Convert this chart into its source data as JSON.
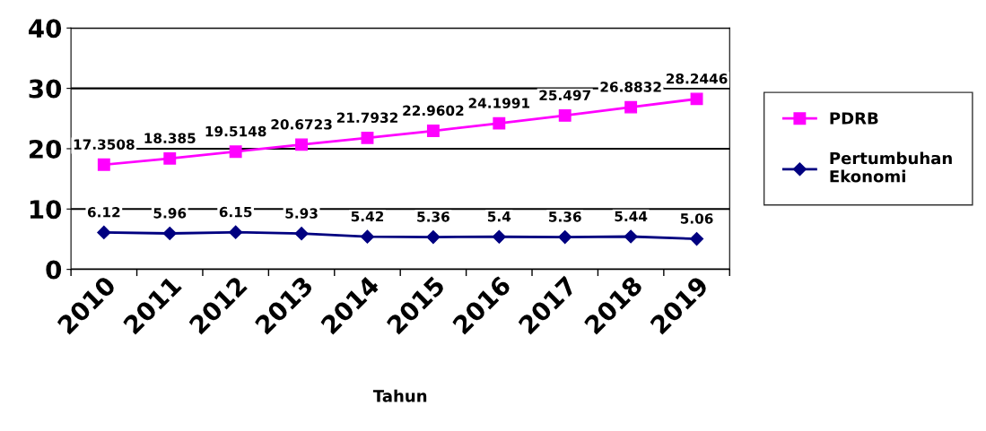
{
  "chart_data": {
    "type": "line",
    "xlabel": "Tahun",
    "categories": [
      "2010",
      "2011",
      "2012",
      "2013",
      "2014",
      "2015",
      "2016",
      "2017",
      "2018",
      "2019"
    ],
    "series": [
      {
        "name": "PDRB",
        "color": "#ff00ff",
        "marker": "square",
        "values": [
          17.3508,
          18.385,
          19.5148,
          20.6723,
          21.7932,
          22.9602,
          24.1991,
          25.497,
          26.8832,
          28.2446
        ]
      },
      {
        "name": "Pertumbuhan Ekonomi",
        "color": "#000080",
        "marker": "diamond",
        "values": [
          6.12,
          5.96,
          6.15,
          5.93,
          5.42,
          5.36,
          5.4,
          5.36,
          5.44,
          5.06
        ]
      }
    ],
    "ylim": [
      0,
      40
    ],
    "yticks": [
      0,
      10,
      20,
      30,
      40
    ],
    "grid": "y",
    "legend": "right",
    "data_labels": true,
    "line_style": "solid"
  }
}
